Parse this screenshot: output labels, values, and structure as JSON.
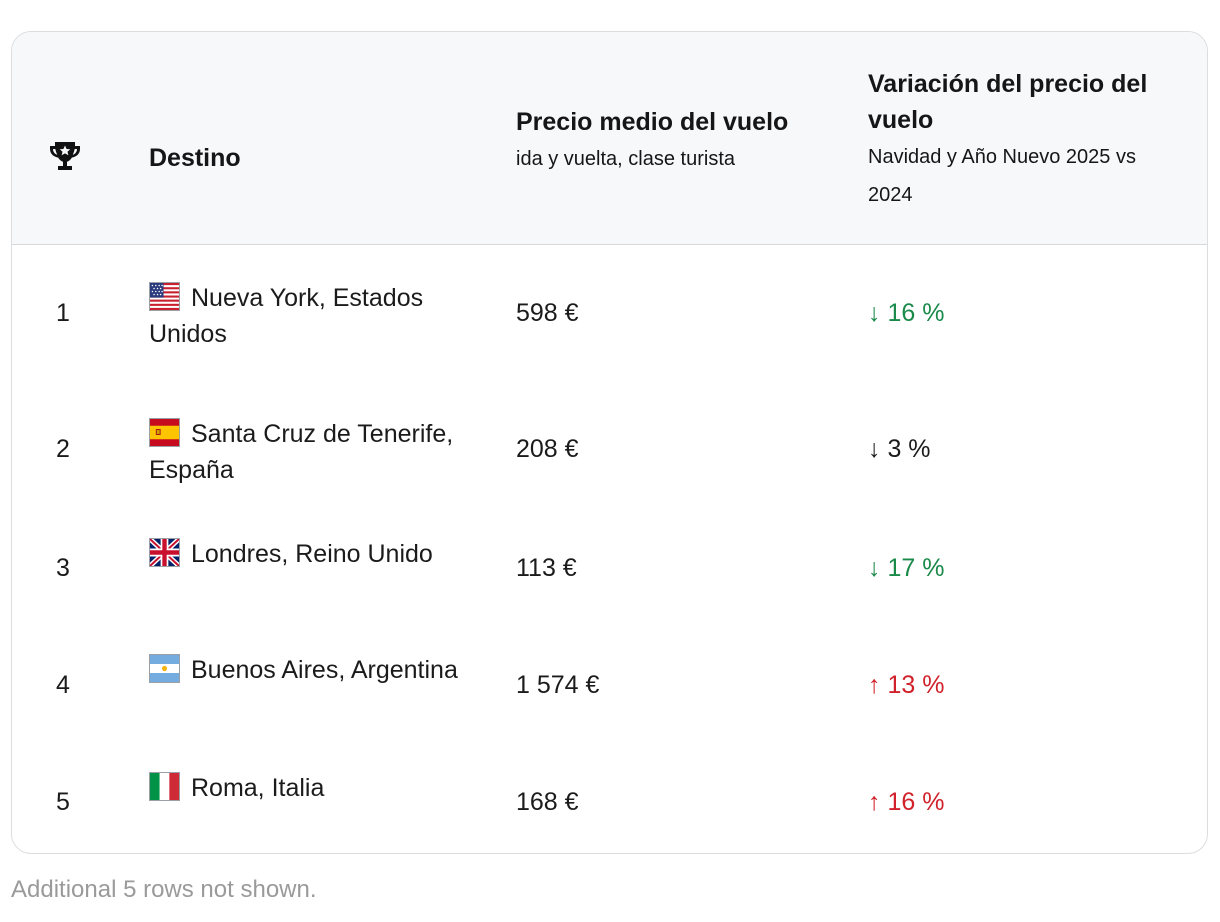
{
  "header": {
    "rank_icon": "trophy-icon",
    "destination": "Destino",
    "price_title": "Precio medio del vuelo",
    "price_subtitle": "ida y vuelta, clase turista",
    "variation_title": "Variación del precio del vuelo",
    "variation_subtitle": "Navidad y Año Nuevo 2025 vs 2024"
  },
  "rows": [
    {
      "rank": "1",
      "flag": "us-flag-icon",
      "destination": "Nueva York, Estados Unidos",
      "price": "598 €",
      "arrow": "↓",
      "change": "16 %",
      "trend_color": "#1a8a4a"
    },
    {
      "rank": "2",
      "flag": "es-flag-icon",
      "destination": "Santa Cruz de Tenerife, España",
      "price": "208 €",
      "arrow": "↓",
      "change": "3 %",
      "trend_color": "#1b1b1b"
    },
    {
      "rank": "3",
      "flag": "gb-flag-icon",
      "destination": "Londres, Reino Unido",
      "price": "113 €",
      "arrow": "↓",
      "change": "17 %",
      "trend_color": "#1a8a4a"
    },
    {
      "rank": "4",
      "flag": "ar-flag-icon",
      "destination": "Buenos Aires, Argentina",
      "price": "1 574 €",
      "arrow": "↑",
      "change": "13 %",
      "trend_color": "#d1222b"
    },
    {
      "rank": "5",
      "flag": "it-flag-icon",
      "destination": "Roma, Italia",
      "price": "168 €",
      "arrow": "↑",
      "change": "16 %",
      "trend_color": "#d1222b"
    }
  ],
  "footnote": "Additional 5 rows not shown."
}
